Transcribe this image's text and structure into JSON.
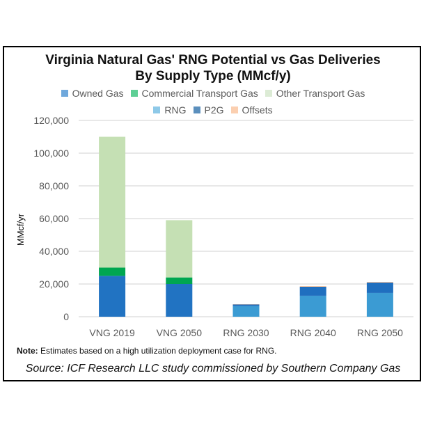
{
  "chart_data": {
    "type": "bar",
    "stacked": true,
    "title": "Virginia Natural Gas' RNG Potential vs Gas Deliveries",
    "subtitle": "By Supply Type (MMcf/y)",
    "ylabel": "MMcf/yr",
    "xlabel": "",
    "ylim": [
      0,
      120000
    ],
    "yticks": [
      "0",
      "20,000",
      "40,000",
      "60,000",
      "80,000",
      "100,000",
      "120,000"
    ],
    "grid": true,
    "legend_position": "top",
    "categories": [
      "VNG 2019",
      "VNG 2050",
      "RNG 2030",
      "RNG 2040",
      "RNG 2050"
    ],
    "series": [
      {
        "name": "Owned Gas",
        "color": "#2173c2",
        "values": [
          25000,
          20000,
          0,
          0,
          0
        ]
      },
      {
        "name": "Commercial Transport Gas",
        "color": "#00a650",
        "values": [
          5000,
          4000,
          0,
          0,
          0
        ]
      },
      {
        "name": "Other Transport Gas",
        "color": "#c5e0b4",
        "values": [
          80000,
          35000,
          0,
          0,
          0
        ]
      },
      {
        "name": "RNG",
        "color": "#3b9bd3",
        "values": [
          0,
          0,
          6500,
          12800,
          14500
        ]
      },
      {
        "name": "P2G",
        "color": "#1f6fbf",
        "values": [
          0,
          0,
          1000,
          5500,
          6400
        ]
      },
      {
        "name": "Offsets",
        "color": "#f4b183",
        "values": [
          0,
          0,
          150,
          300,
          300
        ]
      }
    ]
  },
  "note_label": "Note:",
  "note_text": " Estimates based on a high utilization deployment case for RNG.",
  "source": "Source: ICF Research LLC study commissioned by Southern Company Gas"
}
